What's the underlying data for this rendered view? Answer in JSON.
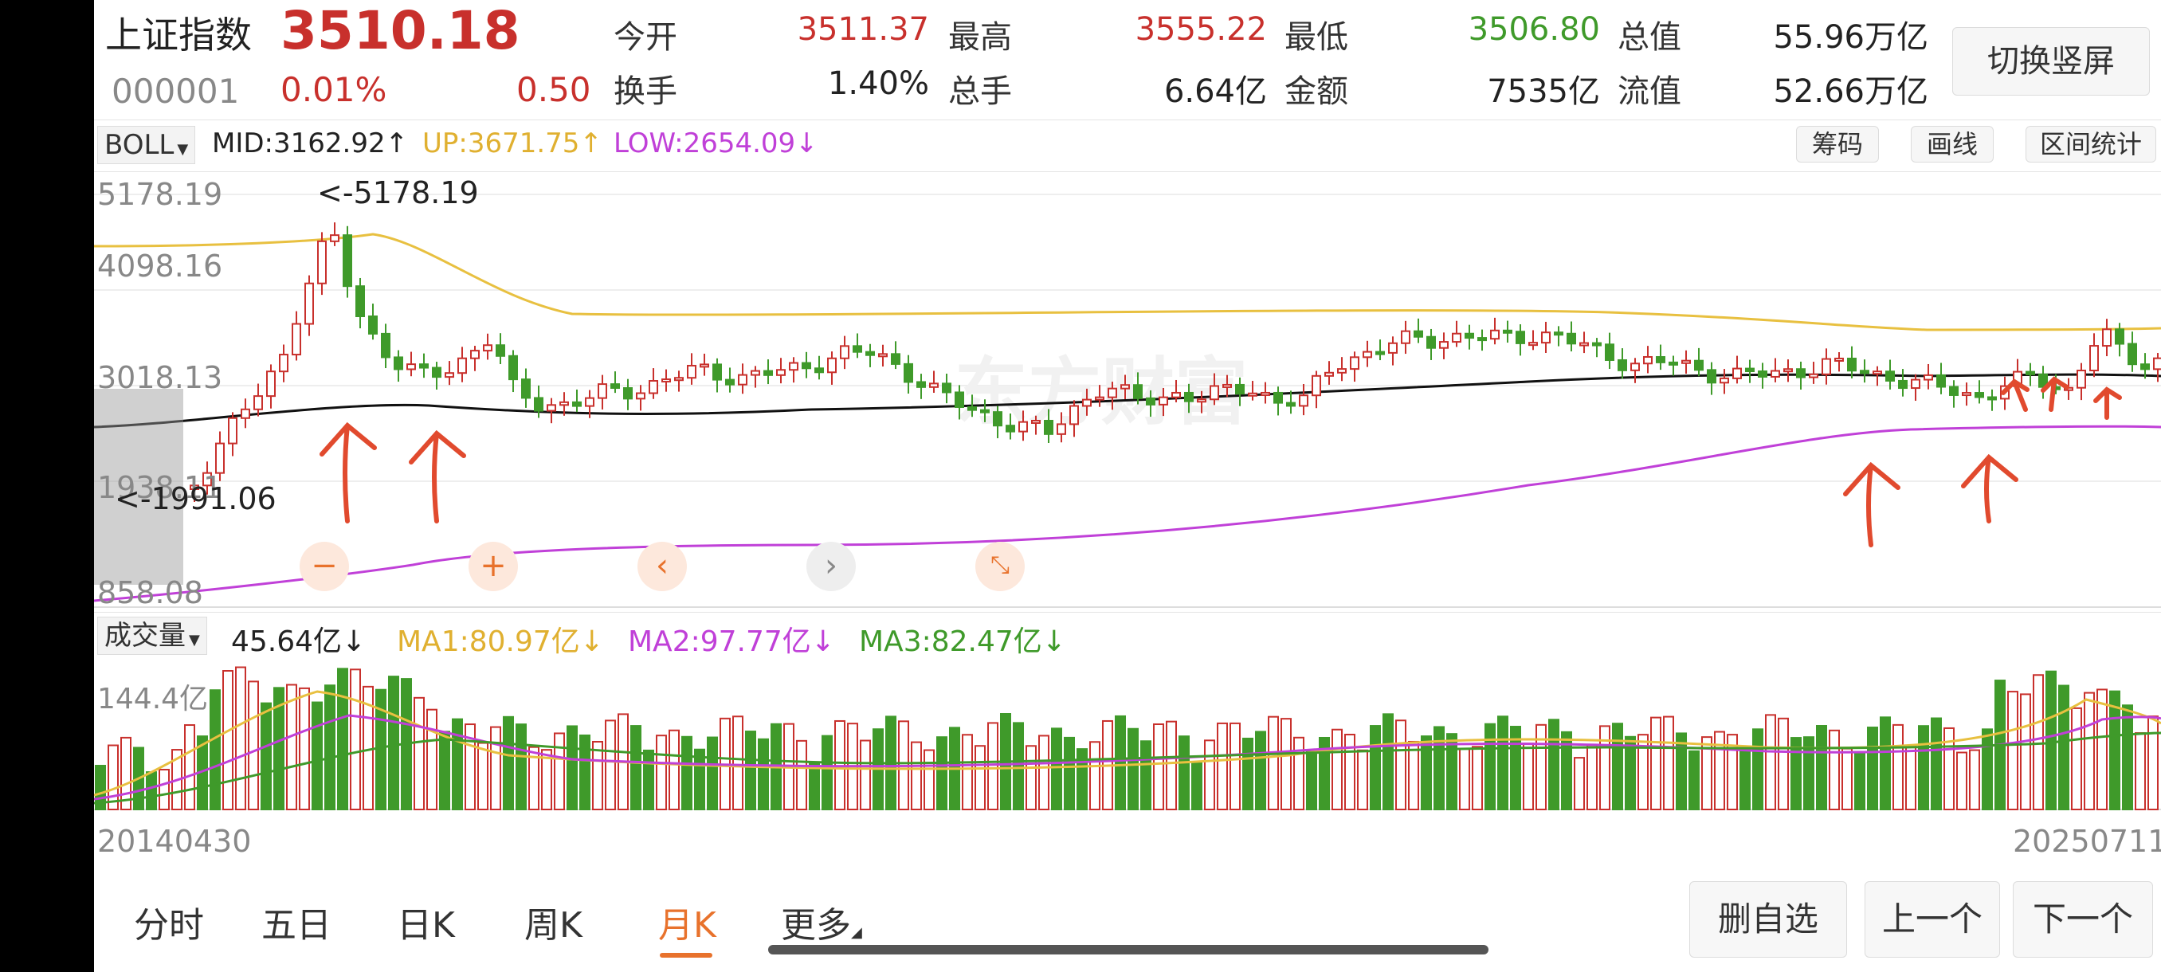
{
  "header": {
    "name": "上证指数",
    "price": "3510.18",
    "code": "000001",
    "pct": "0.01%",
    "change": "0.50",
    "switch_label": "切换竖屏",
    "stats": [
      {
        "label": "今开",
        "value": "3511.37"
      },
      {
        "label": "最高",
        "value": "3555.22"
      },
      {
        "label": "最低",
        "value": "3506.80"
      },
      {
        "label": "总值",
        "value": "55.96万亿"
      },
      {
        "label": "换手",
        "value": "1.40%"
      },
      {
        "label": "总手",
        "value": "6.64亿"
      },
      {
        "label": "金额",
        "value": "7535亿"
      },
      {
        "label": "流值",
        "value": "52.66万亿"
      }
    ]
  },
  "boll_bar": {
    "selector": "BOLL",
    "mid": "MID:3162.92↑",
    "up": "UP:3671.75↑",
    "low": "LOW:2654.09↓",
    "buttons": [
      "筹码",
      "画线",
      "区间统计"
    ]
  },
  "price_chart": {
    "ticks": [
      "5178.19",
      "4098.16",
      "3018.13",
      "1938.11",
      "858.08"
    ],
    "high_marker": "<-5178.19",
    "low_marker": "<-1991.06",
    "watermark": "东方财富"
  },
  "volume_bar": {
    "selector": "成交量",
    "value": "45.64亿↓",
    "ma1": "MA1:80.97亿↓",
    "ma2": "MA2:97.77亿↓",
    "ma3": "MA3:82.47亿↓",
    "tick": "144.4亿"
  },
  "dates": {
    "start": "20140430",
    "end": "20250711"
  },
  "tabs": [
    "分时",
    "五日",
    "日K",
    "周K",
    "月K",
    "更多"
  ],
  "active_tab": "月K",
  "bottom_buttons": [
    "删自选",
    "上一个",
    "下一个"
  ],
  "colors": {
    "up": "#c8302c",
    "down": "#3f9a2a",
    "boll_up": "#e8c040",
    "boll_low": "#c040d8",
    "boll_mid": "#111111",
    "accent": "#e8722c"
  },
  "chart_data": {
    "type": "candlestick",
    "x_range": [
      "20140430",
      "20250711"
    ],
    "ylim": [
      858.08,
      5178.19
    ],
    "price_ticks": [
      5178.19,
      4098.16,
      3018.13,
      1938.11,
      858.08
    ],
    "high": 5178.19,
    "low": 1991.06,
    "boll": {
      "mid": 3162.92,
      "up": 3671.75,
      "low": 2654.09
    },
    "volume": {
      "value": "45.64亿",
      "ma1": "80.97亿",
      "ma2": "97.77亿",
      "ma3": "82.47亿",
      "ymax": "144.4亿"
    }
  }
}
